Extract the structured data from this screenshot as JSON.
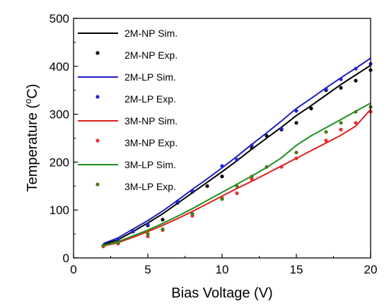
{
  "chart_data": {
    "type": "line",
    "title": "",
    "xlabel": "Bias Voltage (V)",
    "ylabel_main": "Temperature (",
    "ylabel_sup": "o",
    "ylabel_unit": "C)",
    "xlim": [
      0,
      20
    ],
    "ylim": [
      0,
      500
    ],
    "xticks": [
      "0",
      "5",
      "10",
      "15",
      "20"
    ],
    "yticks": [
      "0",
      "100",
      "200",
      "300",
      "400",
      "500"
    ],
    "grid": false,
    "legend_position": "top-left",
    "series": [
      {
        "name": "2M-NP Sim.",
        "kind": "line",
        "color": "#000000",
        "x": [
          2,
          3,
          4,
          5,
          6,
          7,
          8,
          9,
          10,
          11,
          12,
          13,
          14,
          15,
          16,
          17,
          18,
          19,
          20
        ],
        "y": [
          28,
          38,
          55,
          73,
          92,
          114,
          136,
          158,
          180,
          203,
          227,
          250,
          273,
          297,
          318,
          340,
          362,
          382,
          402
        ]
      },
      {
        "name": "2M-NP Exp.",
        "kind": "scatter",
        "color": "#000000",
        "x": [
          2,
          3,
          4,
          5,
          6,
          7,
          8,
          9,
          10,
          11,
          12,
          13,
          14,
          15,
          16,
          17,
          18,
          19,
          20
        ],
        "y": [
          25,
          34,
          55,
          68,
          80,
          115,
          138,
          150,
          170,
          205,
          230,
          255,
          268,
          282,
          312,
          350,
          355,
          370,
          392
        ]
      },
      {
        "name": "2M-LP Sim.",
        "kind": "line",
        "color": "#1f1fbf",
        "x": [
          2,
          3,
          4,
          5,
          6,
          7,
          8,
          9,
          10,
          11,
          12,
          13,
          14,
          15,
          16,
          17,
          18,
          19,
          20
        ],
        "y": [
          30,
          42,
          60,
          78,
          98,
          120,
          143,
          165,
          188,
          212,
          237,
          261,
          286,
          312,
          333,
          355,
          376,
          396,
          417
        ]
      },
      {
        "name": "2M-LP Exp.",
        "kind": "scatter",
        "color": "#2323d8",
        "x": [
          3,
          4,
          5,
          7,
          8,
          10,
          11,
          12,
          14,
          15,
          17,
          18,
          19,
          20
        ],
        "y": [
          38,
          55,
          70,
          118,
          140,
          192,
          205,
          235,
          270,
          307,
          352,
          373,
          395,
          405
        ]
      },
      {
        "name": "3M-NP Sim.",
        "kind": "line",
        "color": "#e02020",
        "x": [
          2,
          3,
          4,
          5,
          6,
          7,
          8,
          9,
          10,
          11,
          12,
          13,
          14,
          15,
          16,
          17,
          18,
          19,
          20
        ],
        "y": [
          25,
          32,
          43,
          55,
          68,
          82,
          97,
          113,
          129,
          145,
          160,
          176,
          192,
          208,
          224,
          240,
          256,
          275,
          310
        ]
      },
      {
        "name": "3M-NP Exp.",
        "kind": "scatter",
        "color": "#e83030",
        "x": [
          2,
          3,
          5,
          6,
          8,
          10,
          11,
          12,
          14,
          15,
          17,
          18,
          19,
          20
        ],
        "y": [
          24,
          30,
          45,
          58,
          88,
          125,
          135,
          165,
          190,
          208,
          245,
          268,
          282,
          305
        ]
      },
      {
        "name": "3M-LP Sim.",
        "kind": "line",
        "color": "#1f8f1f",
        "x": [
          2,
          3,
          4,
          5,
          6,
          7,
          8,
          9,
          10,
          11,
          12,
          13,
          14,
          15,
          16,
          17,
          18,
          19,
          20
        ],
        "y": [
          26,
          34,
          46,
          58,
          72,
          87,
          103,
          120,
          137,
          154,
          171,
          189,
          209,
          235,
          255,
          272,
          289,
          306,
          323
        ]
      },
      {
        "name": "3M-LP Exp.",
        "kind": "scatter",
        "color": "#4a7a1a",
        "x": [
          2,
          3,
          5,
          6,
          8,
          10,
          11,
          12,
          13,
          15,
          17,
          18,
          19,
          20
        ],
        "y": [
          26,
          32,
          50,
          60,
          92,
          123,
          150,
          170,
          190,
          220,
          263,
          282,
          305,
          315
        ]
      }
    ]
  }
}
